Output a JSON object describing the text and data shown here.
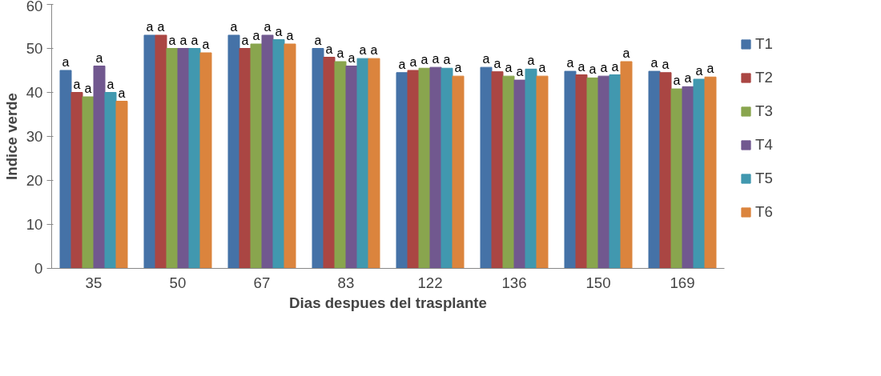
{
  "chart_data": {
    "type": "bar",
    "xlabel": "Dias despues del trasplante",
    "ylabel": "Indice verde",
    "categories": [
      "35",
      "50",
      "67",
      "83",
      "122",
      "136",
      "150",
      "169"
    ],
    "ylim": [
      0,
      60
    ],
    "yticks": [
      0,
      10,
      20,
      30,
      40,
      50,
      60
    ],
    "grid": false,
    "legend": "right",
    "series": [
      {
        "name": "T1",
        "color": "#4572a7",
        "values": [
          45,
          53,
          53,
          50,
          44.5,
          45.7,
          44.8,
          44.8
        ],
        "value_labels": [
          "a",
          "a",
          "a",
          "a",
          "a",
          "a",
          "a",
          "a"
        ]
      },
      {
        "name": "T2",
        "color": "#aa4643",
        "values": [
          40,
          53,
          50,
          48,
          45,
          44.7,
          44,
          44.5
        ],
        "value_labels": [
          "a",
          "a",
          "a",
          "a",
          "a",
          "a",
          "a",
          "a"
        ]
      },
      {
        "name": "T3",
        "color": "#89a54e",
        "values": [
          39,
          50,
          51,
          47,
          45.5,
          43.7,
          43.3,
          40.8
        ],
        "value_labels": [
          "a",
          "a",
          "a",
          "a",
          "a",
          "a",
          "a",
          "a"
        ]
      },
      {
        "name": "T4",
        "color": "#71588f",
        "values": [
          46,
          50,
          53,
          46,
          45.7,
          42.8,
          43.7,
          41.3
        ],
        "value_labels": [
          "a",
          "a",
          "a",
          "a",
          "a",
          "a",
          "a",
          "a"
        ]
      },
      {
        "name": "T5",
        "color": "#4198af",
        "values": [
          40,
          50,
          52,
          47.7,
          45.5,
          45.3,
          44,
          43
        ],
        "value_labels": [
          "a",
          "a",
          "a",
          "a",
          "a",
          "a",
          "a",
          "a"
        ]
      },
      {
        "name": "T6",
        "color": "#db843d",
        "values": [
          38,
          49,
          51,
          47.7,
          43.7,
          43.7,
          47,
          43.5
        ],
        "value_labels": [
          "a",
          "a",
          "a",
          "a",
          "a",
          "a",
          "a",
          "a"
        ]
      }
    ]
  }
}
